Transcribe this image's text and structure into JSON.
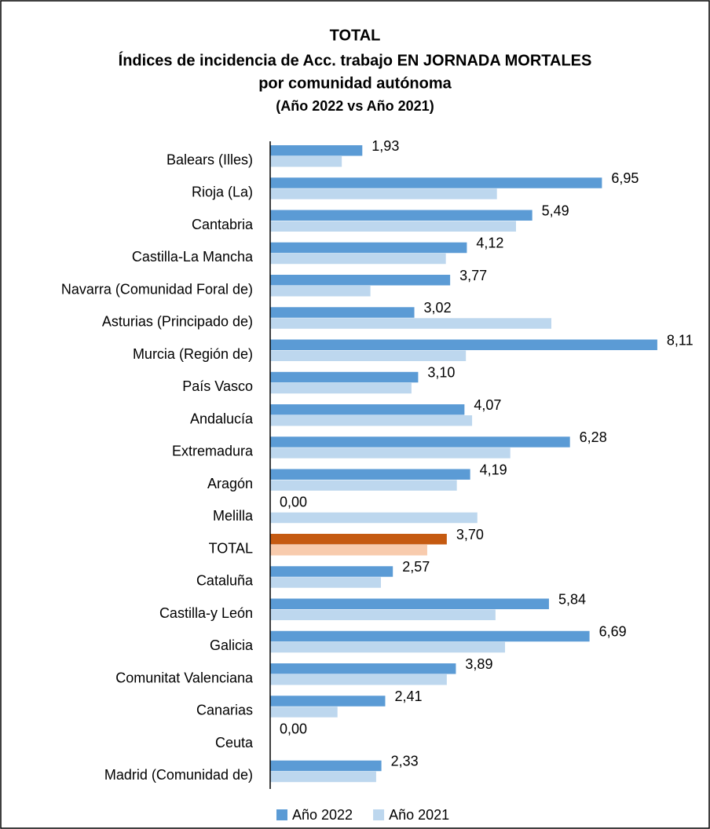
{
  "chart_data": {
    "type": "hbar",
    "title": [
      "TOTAL",
      "Índices de incidencia de Acc. trabajo EN JORNADA MORTALES",
      "por comunidad autónoma",
      "(Año 2022 vs Año 2021)"
    ],
    "categories": [
      "Balears (Illes)",
      "Rioja (La)",
      "Cantabria",
      "Castilla-La Mancha",
      "Navarra (Comunidad Foral de)",
      "Asturias (Principado de)",
      "Murcia (Región de)",
      "País Vasco",
      "Andalucía",
      "Extremadura",
      "Aragón",
      "Melilla",
      "TOTAL",
      "Cataluña",
      "Castilla-y León",
      "Galicia",
      "Comunitat Valenciana",
      "Canarias",
      "Ceuta",
      "Madrid (Comunidad de)"
    ],
    "highlight_index": 12,
    "series": [
      {
        "name": "Año 2022",
        "color": "#5b9bd5",
        "highlight_color": "#c55a11",
        "values": [
          1.93,
          6.95,
          5.49,
          4.12,
          3.77,
          3.02,
          8.11,
          3.1,
          4.07,
          6.28,
          4.19,
          0,
          3.7,
          2.57,
          5.84,
          6.69,
          3.89,
          2.41,
          0,
          2.33
        ],
        "value_labels": [
          "1,93",
          "6,95",
          "5,49",
          "4,12",
          "3,77",
          "3,02",
          "8,11",
          "3,10",
          "4,07",
          "6,28",
          "4,19",
          "0,00",
          "3,70",
          "2,57",
          "5,84",
          "6,69",
          "3,89",
          "2,41",
          "0,00",
          "2,33"
        ]
      },
      {
        "name": "Año 2021",
        "color": "#bdd7ee",
        "highlight_color": "#f8cbad",
        "values": [
          1.5,
          4.75,
          5.15,
          3.68,
          2.1,
          5.89,
          4.1,
          2.96,
          4.23,
          5.03,
          3.91,
          4.34,
          3.29,
          2.32,
          4.72,
          4.92,
          3.7,
          1.41,
          0,
          2.22
        ]
      }
    ],
    "xlim": [
      0,
      9
    ],
    "legend": "bottom"
  }
}
